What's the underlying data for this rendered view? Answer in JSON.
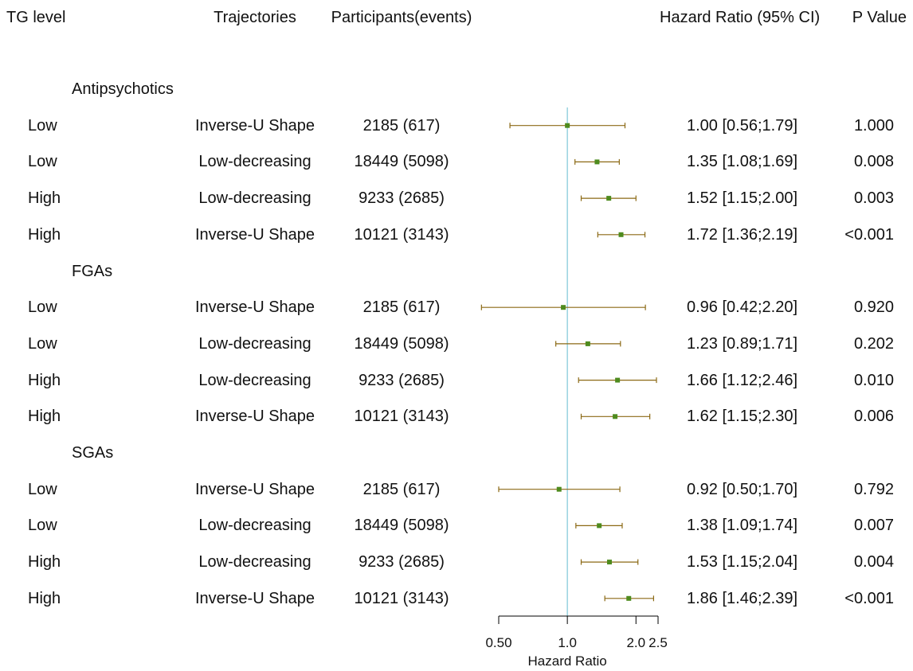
{
  "headers": {
    "tg_level": "TG level",
    "trajectories": "Trajectories",
    "participants": "Participants(events)",
    "hr": "Hazard Ratio (95% CI)",
    "p": "P Value"
  },
  "groups": [
    {
      "name": "Antipsychotics",
      "rows": [
        {
          "tg": "Low",
          "traj": "Inverse-U Shape",
          "part": "2185 (617)",
          "hr_text": "1.00 [0.56;1.79]",
          "p": "1.000",
          "hr": 1.0,
          "lo": 0.56,
          "hi": 1.79
        },
        {
          "tg": "Low",
          "traj": "Low-decreasing",
          "part": "18449 (5098)",
          "hr_text": "1.35 [1.08;1.69]",
          "p": "0.008",
          "hr": 1.35,
          "lo": 1.08,
          "hi": 1.69
        },
        {
          "tg": "High",
          "traj": "Low-decreasing",
          "part": "9233 (2685)",
          "hr_text": "1.52 [1.15;2.00]",
          "p": "0.003",
          "hr": 1.52,
          "lo": 1.15,
          "hi": 2.0
        },
        {
          "tg": "High",
          "traj": "Inverse-U Shape",
          "part": "10121 (3143)",
          "hr_text": "1.72 [1.36;2.19]",
          "p": "<0.001",
          "hr": 1.72,
          "lo": 1.36,
          "hi": 2.19
        }
      ]
    },
    {
      "name": "FGAs",
      "rows": [
        {
          "tg": "Low",
          "traj": "Inverse-U Shape",
          "part": "2185 (617)",
          "hr_text": "0.96 [0.42;2.20]",
          "p": "0.920",
          "hr": 0.96,
          "lo": 0.42,
          "hi": 2.2
        },
        {
          "tg": "Low",
          "traj": "Low-decreasing",
          "part": "18449 (5098)",
          "hr_text": "1.23 [0.89;1.71]",
          "p": "0.202",
          "hr": 1.23,
          "lo": 0.89,
          "hi": 1.71
        },
        {
          "tg": "High",
          "traj": "Low-decreasing",
          "part": "9233 (2685)",
          "hr_text": "1.66 [1.12;2.46]",
          "p": "0.010",
          "hr": 1.66,
          "lo": 1.12,
          "hi": 2.46
        },
        {
          "tg": "High",
          "traj": "Inverse-U Shape",
          "part": "10121 (3143)",
          "hr_text": "1.62 [1.15;2.30]",
          "p": "0.006",
          "hr": 1.62,
          "lo": 1.15,
          "hi": 2.3
        }
      ]
    },
    {
      "name": "SGAs",
      "rows": [
        {
          "tg": "Low",
          "traj": "Inverse-U Shape",
          "part": "2185 (617)",
          "hr_text": "0.92 [0.50;1.70]",
          "p": "0.792",
          "hr": 0.92,
          "lo": 0.5,
          "hi": 1.7
        },
        {
          "tg": "Low",
          "traj": "Low-decreasing",
          "part": "18449 (5098)",
          "hr_text": "1.38 [1.09;1.74]",
          "p": "0.007",
          "hr": 1.38,
          "lo": 1.09,
          "hi": 1.74
        },
        {
          "tg": "High",
          "traj": "Low-decreasing",
          "part": "9233 (2685)",
          "hr_text": "1.53 [1.15;2.04]",
          "p": "0.004",
          "hr": 1.53,
          "lo": 1.15,
          "hi": 2.04
        },
        {
          "tg": "High",
          "traj": "Inverse-U Shape",
          "part": "10121 (3143)",
          "hr_text": "1.86 [1.46;2.39]",
          "p": "<0.001",
          "hr": 1.86,
          "lo": 1.46,
          "hi": 2.39
        }
      ]
    }
  ],
  "chart_data": {
    "type": "forest",
    "xlabel": "Hazard Ratio",
    "x_scale": "log",
    "xlim": [
      0.5,
      2.5
    ],
    "ticks": [
      0.5,
      1.0,
      2.0,
      2.5
    ],
    "tick_labels": [
      "0.50",
      "1.0",
      "2.0",
      "2.5"
    ],
    "reference_line": 1.0,
    "colors": {
      "ci_line": "#8B6914",
      "point": "#4E8B1E",
      "reference": "#7EC8D8"
    }
  }
}
